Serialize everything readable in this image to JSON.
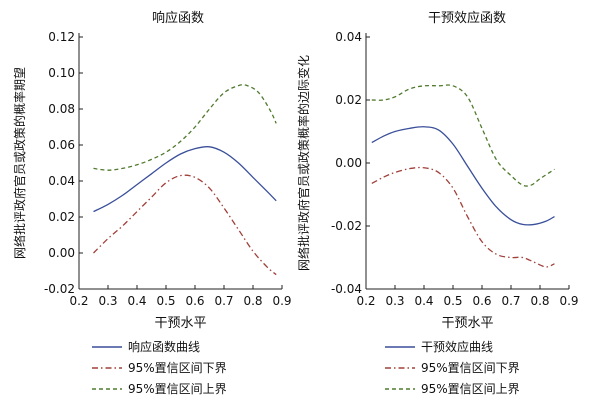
{
  "chart_data": [
    {
      "type": "line",
      "title": "响应函数",
      "xlabel": "干预水平",
      "ylabel": "网络批评政府官员或政策的概率期望",
      "xlim": [
        0.2,
        0.9
      ],
      "ylim": [
        -0.02,
        0.12
      ],
      "xticks": [
        "0.2",
        "0.3",
        "0.4",
        "0.5",
        "0.6",
        "0.7",
        "0.8",
        "0.9"
      ],
      "yticks": [
        "-0.02",
        "0.00",
        "0.02",
        "0.04",
        "0.06",
        "0.08",
        "0.10",
        "0.12"
      ],
      "legend_position": "bottom",
      "series": [
        {
          "name": "响应函数曲线",
          "color": "#3a4f9a",
          "style": "solid",
          "x": [
            0.25,
            0.3,
            0.35,
            0.4,
            0.45,
            0.5,
            0.55,
            0.6,
            0.65,
            0.7,
            0.75,
            0.8,
            0.85,
            0.88
          ],
          "y": [
            0.023,
            0.027,
            0.032,
            0.038,
            0.044,
            0.05,
            0.055,
            0.058,
            0.059,
            0.056,
            0.05,
            0.042,
            0.034,
            0.029
          ]
        },
        {
          "name": "95%置信区间下界",
          "color": "#a0403a",
          "style": "dashdot",
          "x": [
            0.25,
            0.3,
            0.35,
            0.4,
            0.45,
            0.5,
            0.55,
            0.6,
            0.65,
            0.7,
            0.75,
            0.8,
            0.85,
            0.88
          ],
          "y": [
            0.0,
            0.008,
            0.015,
            0.023,
            0.031,
            0.039,
            0.043,
            0.042,
            0.036,
            0.025,
            0.013,
            0.001,
            -0.008,
            -0.012
          ]
        },
        {
          "name": "95%置信区间上界",
          "color": "#4f7a2d",
          "style": "dashed",
          "x": [
            0.25,
            0.3,
            0.35,
            0.4,
            0.45,
            0.5,
            0.55,
            0.6,
            0.65,
            0.7,
            0.75,
            0.78,
            0.82,
            0.86,
            0.88
          ],
          "y": [
            0.047,
            0.046,
            0.047,
            0.049,
            0.052,
            0.056,
            0.062,
            0.07,
            0.08,
            0.089,
            0.093,
            0.093,
            0.089,
            0.079,
            0.072
          ]
        }
      ]
    },
    {
      "type": "line",
      "title": "干预效应函数",
      "xlabel": "干预水平",
      "ylabel": "网络批评政府官员或政策概率的边际变化",
      "xlim": [
        0.2,
        0.9
      ],
      "ylim": [
        -0.04,
        0.04
      ],
      "xticks": [
        "0.2",
        "0.3",
        "0.4",
        "0.5",
        "0.6",
        "0.7",
        "0.8",
        "0.9"
      ],
      "yticks": [
        "-0.04",
        "-0.02",
        "0.00",
        "0.02",
        "0.04"
      ],
      "legend_position": "bottom",
      "series": [
        {
          "name": "干预效应曲线",
          "color": "#3a4f9a",
          "style": "solid",
          "x": [
            0.22,
            0.26,
            0.3,
            0.35,
            0.4,
            0.45,
            0.5,
            0.55,
            0.6,
            0.65,
            0.7,
            0.74,
            0.78,
            0.82,
            0.85
          ],
          "y": [
            0.0065,
            0.0085,
            0.01,
            0.011,
            0.0115,
            0.0105,
            0.006,
            -0.001,
            -0.008,
            -0.014,
            -0.018,
            -0.0195,
            -0.0195,
            -0.0185,
            -0.017
          ]
        },
        {
          "name": "95%置信区间下界",
          "color": "#a0403a",
          "style": "dashdot",
          "x": [
            0.22,
            0.26,
            0.3,
            0.35,
            0.4,
            0.45,
            0.5,
            0.55,
            0.6,
            0.65,
            0.7,
            0.74,
            0.78,
            0.82,
            0.85
          ],
          "y": [
            -0.0065,
            -0.0045,
            -0.003,
            -0.0018,
            -0.0015,
            -0.003,
            -0.008,
            -0.017,
            -0.025,
            -0.029,
            -0.03,
            -0.03,
            -0.0315,
            -0.033,
            -0.032
          ]
        },
        {
          "name": "95%置信区间上界",
          "color": "#4f7a2d",
          "style": "dashed",
          "x": [
            0.22,
            0.26,
            0.3,
            0.35,
            0.4,
            0.45,
            0.5,
            0.55,
            0.6,
            0.65,
            0.7,
            0.74,
            0.77,
            0.8,
            0.85
          ],
          "y": [
            0.02,
            0.02,
            0.021,
            0.0235,
            0.0245,
            0.0245,
            0.0245,
            0.021,
            0.011,
            0.001,
            -0.004,
            -0.007,
            -0.007,
            -0.005,
            -0.002
          ]
        }
      ]
    }
  ],
  "legend_left": [
    {
      "label": "响应函数曲线",
      "color": "#3a4f9a",
      "style": "solid"
    },
    {
      "label": "95%置信区间下界",
      "color": "#a0403a",
      "style": "dashdot"
    },
    {
      "label": "95%置信区间上界",
      "color": "#4f7a2d",
      "style": "dashed"
    }
  ],
  "legend_right": [
    {
      "label": "干预效应曲线",
      "color": "#3a4f9a",
      "style": "solid"
    },
    {
      "label": "95%置信区间下界",
      "color": "#a0403a",
      "style": "dashdot"
    },
    {
      "label": "95%置信区间上界",
      "color": "#4f7a2d",
      "style": "dashed"
    }
  ]
}
